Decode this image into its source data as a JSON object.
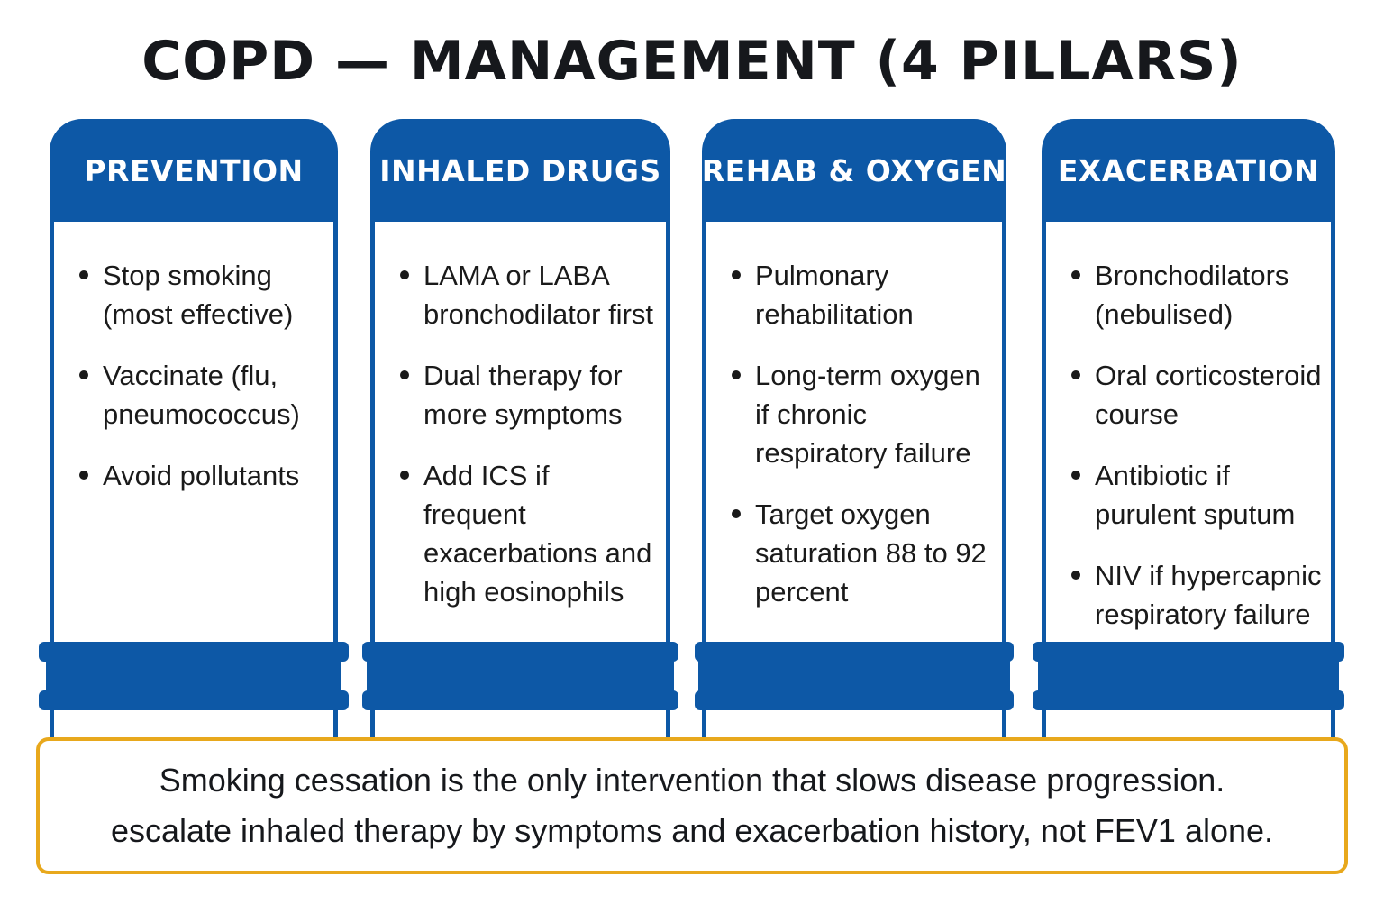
{
  "title": "COPD — MANAGEMENT (4 PILLARS)",
  "pillars": [
    {
      "heading": "PREVENTION",
      "items": [
        "Stop smoking (most effective)",
        "Vaccinate (flu, pneumococcus)",
        "Avoid pollutants"
      ]
    },
    {
      "heading": "INHALED DRUGS",
      "items": [
        "LAMA or LABA bronchodilator first",
        "Dual therapy for more symptoms",
        "Add ICS if frequent exacerbations and high eosinophils"
      ]
    },
    {
      "heading": "REHAB & OXYGEN",
      "items": [
        "Pulmonary rehabilitation",
        "Long-term oxygen if chronic respiratory failure",
        "Target oxygen saturation 88 to 92 percent"
      ]
    },
    {
      "heading": "EXACERBATION",
      "items": [
        "Bronchodilators (nebulised)",
        "Oral corticosteroid course",
        "Antibiotic if purulent sputum",
        "NIV if hypercapnic respiratory failure"
      ]
    }
  ],
  "note": {
    "line1": "Smoking cessation is the only intervention that slows disease progression.",
    "line2": "escalate inhaled therapy by symptoms and exacerbation history, not FEV1 alone."
  },
  "colors": {
    "pillar_blue": "#0d58a6",
    "note_border": "#e8a81c",
    "text_dark": "#16181c"
  }
}
